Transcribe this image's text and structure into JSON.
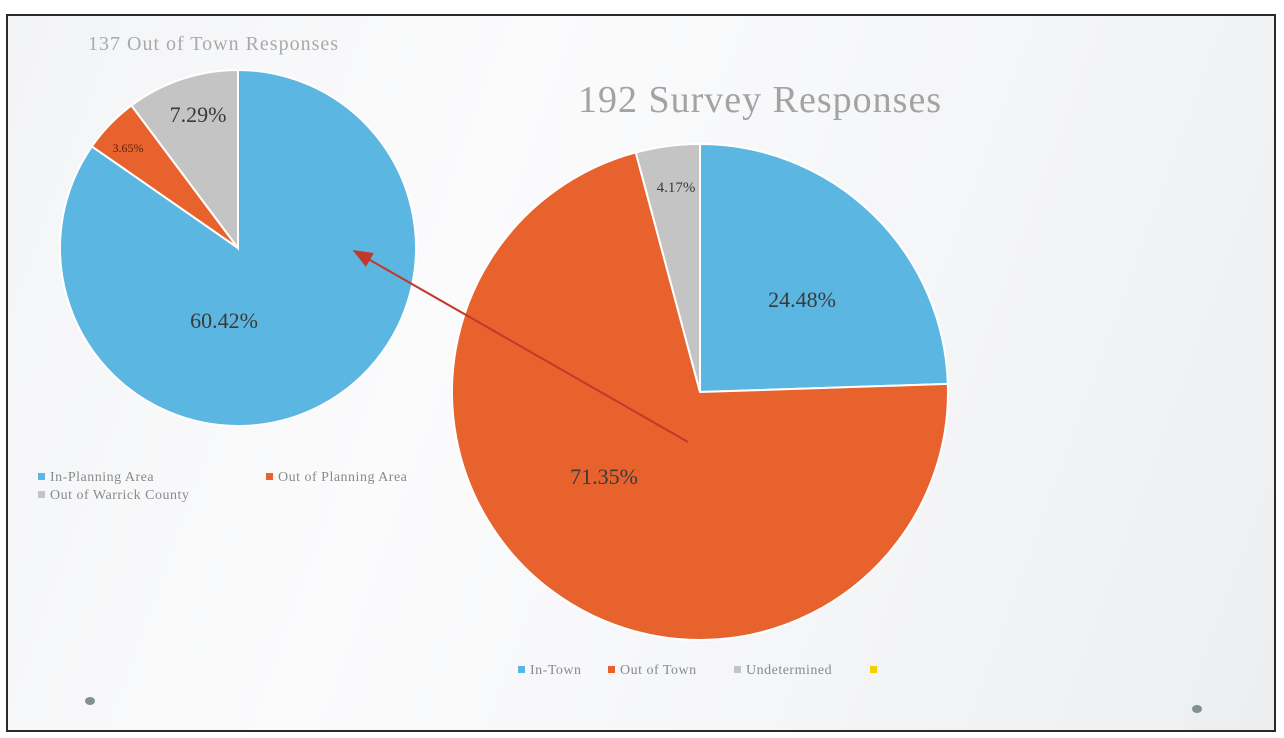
{
  "colors": {
    "blue": "#5bb6e1",
    "orange": "#e8622e",
    "gray": "#c4c4c4",
    "yellow": "#f2d200",
    "arrow": "#c0392b"
  },
  "chart_data": [
    {
      "type": "pie",
      "title": "137 Out of Town Responses",
      "slices": [
        {
          "label": "In-Planning Area",
          "value": 60.42,
          "text": "60.42%",
          "color": "#5bb6e1"
        },
        {
          "label": "Out of Planning Area",
          "value": 3.65,
          "text": "3.65%",
          "color": "#e8622e"
        },
        {
          "label": "Out of Warrick County",
          "value": 7.29,
          "text": "7.29%",
          "color": "#c4c4c4"
        }
      ],
      "legend_position": "bottom-left"
    },
    {
      "type": "pie",
      "title": "192 Survey Responses",
      "slices": [
        {
          "label": "In-Town",
          "value": 24.48,
          "text": "24.48%",
          "color": "#5bb6e1"
        },
        {
          "label": "Out of Town",
          "value": 71.35,
          "text": "71.35%",
          "color": "#e8622e"
        },
        {
          "label": "Undetermined",
          "value": 4.17,
          "text": "4.17%",
          "color": "#c4c4c4"
        },
        {
          "label": "",
          "value": 0,
          "text": "",
          "color": "#f2d200"
        }
      ],
      "legend_position": "bottom"
    }
  ]
}
